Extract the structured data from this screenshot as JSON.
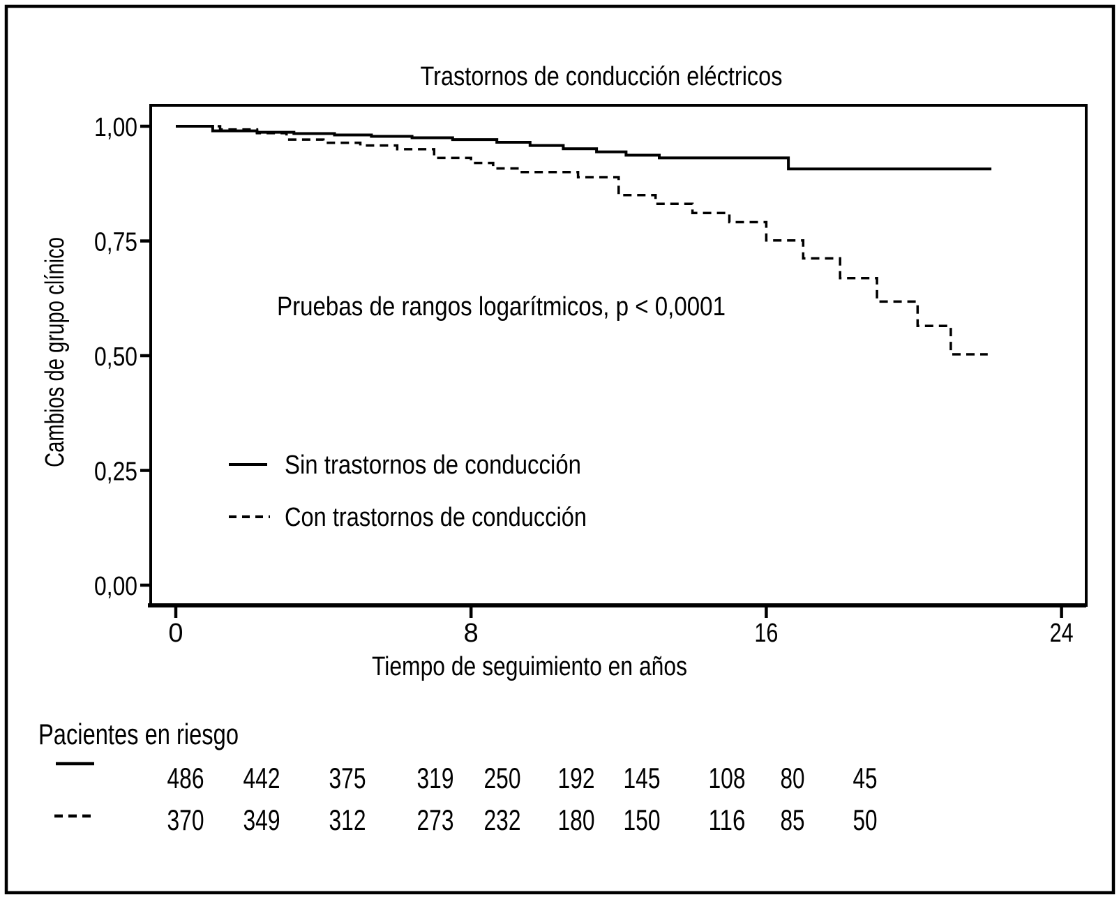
{
  "figure_title": "Trastornos de conducción eléctricos",
  "chart_data": {
    "type": "line",
    "subtype": "kaplan_meier_step",
    "title": "Trastornos de conducción eléctricos",
    "xlabel": "Tiempo de seguimiento en años",
    "ylabel": "Cambios de grupo clínico",
    "xlim": [
      0,
      24
    ],
    "ylim": [
      0.0,
      1.0
    ],
    "grid": false,
    "x_ticks": {
      "values": [
        0,
        8,
        16,
        24
      ],
      "labels": [
        "0",
        "8",
        "16",
        "24"
      ]
    },
    "y_ticks": {
      "values": [
        0.0,
        0.25,
        0.5,
        0.75,
        1.0
      ],
      "labels": [
        "0,00",
        "0,25",
        "0,50",
        "0,75",
        "1,00"
      ]
    },
    "annotation": "Pruebas de rangos logarítmicos, p < 0,0001",
    "legend_position": "inside-middle-left",
    "line_color": "#000000",
    "series": [
      {
        "name": "Sin trastornos de conducción",
        "line_style": "solid",
        "color": "#000000",
        "points": [
          [
            0,
            1.0
          ],
          [
            1.0,
            0.99
          ],
          [
            2.2,
            0.987
          ],
          [
            3.2,
            0.984
          ],
          [
            4.3,
            0.981
          ],
          [
            5.3,
            0.978
          ],
          [
            6.4,
            0.975
          ],
          [
            7.5,
            0.971
          ],
          [
            8.7,
            0.965
          ],
          [
            9.6,
            0.958
          ],
          [
            10.5,
            0.951
          ],
          [
            11.4,
            0.944
          ],
          [
            12.2,
            0.937
          ],
          [
            13.1,
            0.931
          ],
          [
            16.6,
            0.907
          ]
        ],
        "end_time": 22.1
      },
      {
        "name": "Con trastornos de conducción",
        "line_style": "dashed",
        "color": "#000000",
        "points": [
          [
            0,
            1.0
          ],
          [
            1.2,
            0.993
          ],
          [
            2.2,
            0.985
          ],
          [
            3.0,
            0.971
          ],
          [
            4.0,
            0.964
          ],
          [
            5.0,
            0.958
          ],
          [
            6.0,
            0.95
          ],
          [
            7.0,
            0.931
          ],
          [
            8.0,
            0.92
          ],
          [
            8.6,
            0.908
          ],
          [
            9.3,
            0.9
          ],
          [
            10.9,
            0.889
          ],
          [
            12.0,
            0.85
          ],
          [
            13.0,
            0.831
          ],
          [
            14.0,
            0.811
          ],
          [
            15.0,
            0.791
          ],
          [
            16.0,
            0.751
          ],
          [
            17.0,
            0.712
          ],
          [
            18.0,
            0.669
          ],
          [
            19.0,
            0.618
          ],
          [
            20.1,
            0.565
          ],
          [
            21.0,
            0.503
          ]
        ],
        "end_time": 22.0
      }
    ],
    "at_risk": {
      "title": "Pacientes en riesgo",
      "rows": [
        {
          "series": "Sin trastornos de conducción",
          "line_style": "solid",
          "counts": [
            486,
            442,
            375,
            319,
            250,
            192,
            145,
            108,
            80,
            45
          ]
        },
        {
          "series": "Con trastornos de conducción",
          "line_style": "dashed",
          "counts": [
            370,
            349,
            312,
            273,
            232,
            180,
            150,
            116,
            85,
            50
          ]
        }
      ]
    }
  }
}
